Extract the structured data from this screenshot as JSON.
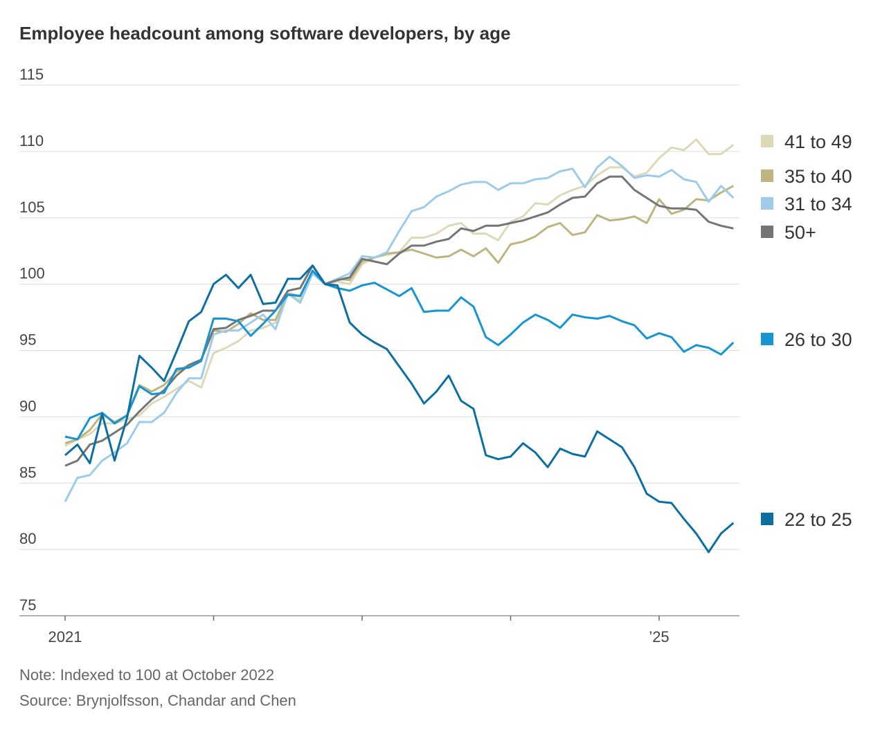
{
  "chart_data": {
    "type": "line",
    "title": "Employee headcount among software developers, by age",
    "note": "Note: Indexed to 100 at October 2022",
    "source": "Source: Brynjolfsson, Chandar and Chen",
    "categories": [
      "2021",
      null,
      null,
      null,
      null,
      null,
      null,
      null,
      null,
      null,
      null,
      null,
      null,
      null,
      null,
      null,
      null,
      null,
      null,
      null,
      null,
      null,
      null,
      null,
      null,
      null,
      null,
      null,
      null,
      null,
      null,
      null,
      null,
      null,
      null,
      null,
      null,
      null,
      null,
      null,
      null,
      null,
      null,
      null,
      null,
      null,
      null,
      null,
      "’25",
      null,
      null,
      null,
      null,
      null,
      null
    ],
    "ylim": [
      75,
      115
    ],
    "yticks": [
      75,
      80,
      85,
      90,
      95,
      100,
      105,
      110,
      115
    ],
    "grid": true,
    "series": [
      {
        "name": "41 to 49",
        "color": "#ddd9b8",
        "values": [
          87.8,
          88.3,
          88.7,
          89.5,
          89.5,
          89.8,
          90.1,
          91.0,
          91.5,
          92.1,
          92.7,
          92.2,
          94.8,
          95.2,
          95.7,
          96.5,
          96.7,
          97.1,
          99.2,
          98.8,
          101.0,
          100.0,
          100.2,
          100.0,
          101.5,
          102.0,
          102.2,
          102.4,
          103.5,
          103.5,
          103.8,
          104.4,
          104.6,
          103.8,
          103.8,
          103.3,
          104.7,
          105.1,
          106.1,
          106.0,
          106.7,
          107.1,
          107.4,
          108.2,
          108.8,
          108.8,
          108.1,
          108.4,
          109.5,
          110.3,
          110.1,
          110.9,
          109.8,
          109.8,
          110.5
        ]
      },
      {
        "name": "35 to 40",
        "color": "#bdb57f",
        "values": [
          88.0,
          88.3,
          89.0,
          90.2,
          89.6,
          90.1,
          92.4,
          91.9,
          92.4,
          93.4,
          93.9,
          94.3,
          96.5,
          96.4,
          97.0,
          97.8,
          97.3,
          97.3,
          99.3,
          99.1,
          101.0,
          100.0,
          100.4,
          100.3,
          101.7,
          102.0,
          102.3,
          102.4,
          102.6,
          102.3,
          102.0,
          102.1,
          102.6,
          102.1,
          102.7,
          101.6,
          103.0,
          103.2,
          103.6,
          104.3,
          104.6,
          103.7,
          103.9,
          105.2,
          104.8,
          104.9,
          105.1,
          104.6,
          106.4,
          105.3,
          105.6,
          106.4,
          106.3,
          106.9,
          107.4
        ]
      },
      {
        "name": "31 to 34",
        "color": "#9dcbeb",
        "values": [
          83.6,
          85.4,
          85.6,
          86.7,
          87.3,
          88.0,
          89.6,
          89.6,
          90.3,
          91.8,
          92.9,
          92.9,
          96.2,
          96.5,
          96.5,
          97.1,
          97.7,
          96.6,
          99.3,
          98.6,
          100.8,
          100.0,
          100.4,
          100.8,
          102.1,
          102.0,
          102.4,
          104.0,
          105.5,
          105.8,
          106.6,
          107.0,
          107.5,
          107.7,
          107.7,
          107.1,
          107.6,
          107.6,
          107.9,
          108.0,
          108.5,
          108.7,
          107.3,
          108.8,
          109.6,
          108.9,
          108.0,
          108.2,
          108.1,
          108.6,
          107.9,
          107.7,
          106.2,
          107.4,
          106.5
        ]
      },
      {
        "name": "50+",
        "color": "#757575",
        "values": [
          86.3,
          86.7,
          87.9,
          88.2,
          88.8,
          89.4,
          90.4,
          91.3,
          92.0,
          93.1,
          93.9,
          94.3,
          96.6,
          96.7,
          97.3,
          97.6,
          98.0,
          98.0,
          99.5,
          99.7,
          101.4,
          100.0,
          100.3,
          100.5,
          101.9,
          101.7,
          101.5,
          102.3,
          102.9,
          102.9,
          103.2,
          103.4,
          104.2,
          104.0,
          104.4,
          104.4,
          104.6,
          104.8,
          105.1,
          105.4,
          106.0,
          106.5,
          106.6,
          107.6,
          108.1,
          108.1,
          107.1,
          106.5,
          105.9,
          105.7,
          105.7,
          105.6,
          104.7,
          104.4,
          104.2
        ]
      },
      {
        "name": "26 to 30",
        "color": "#1794d4",
        "values": [
          88.5,
          88.3,
          89.9,
          90.3,
          89.5,
          90.1,
          92.3,
          91.7,
          91.8,
          93.6,
          93.7,
          94.2,
          97.4,
          97.4,
          97.2,
          96.1,
          97.0,
          98.0,
          99.2,
          99.1,
          101.0,
          100.0,
          99.7,
          99.5,
          99.9,
          100.1,
          99.6,
          99.1,
          99.7,
          97.9,
          98.0,
          98.0,
          99.0,
          98.3,
          96.0,
          95.4,
          96.2,
          97.1,
          97.7,
          97.3,
          96.7,
          97.7,
          97.5,
          97.4,
          97.6,
          97.2,
          96.9,
          95.9,
          96.3,
          96.0,
          94.9,
          95.4,
          95.2,
          94.7,
          95.6
        ]
      },
      {
        "name": "22 to 25",
        "color": "#0c6fa3",
        "values": [
          87.1,
          87.9,
          86.5,
          90.2,
          86.7,
          89.9,
          94.6,
          93.7,
          92.7,
          94.9,
          97.2,
          97.9,
          100.0,
          100.7,
          99.7,
          100.7,
          98.5,
          98.6,
          100.4,
          100.4,
          101.4,
          100.0,
          99.9,
          97.1,
          96.2,
          95.6,
          95.1,
          93.8,
          92.5,
          91.0,
          91.9,
          93.1,
          91.2,
          90.6,
          87.1,
          86.8,
          87.0,
          88.0,
          87.3,
          86.2,
          87.6,
          87.2,
          87.0,
          88.9,
          88.3,
          87.7,
          86.2,
          84.2,
          83.6,
          83.5,
          82.3,
          81.2,
          79.8,
          81.2,
          82.0
        ]
      }
    ]
  }
}
